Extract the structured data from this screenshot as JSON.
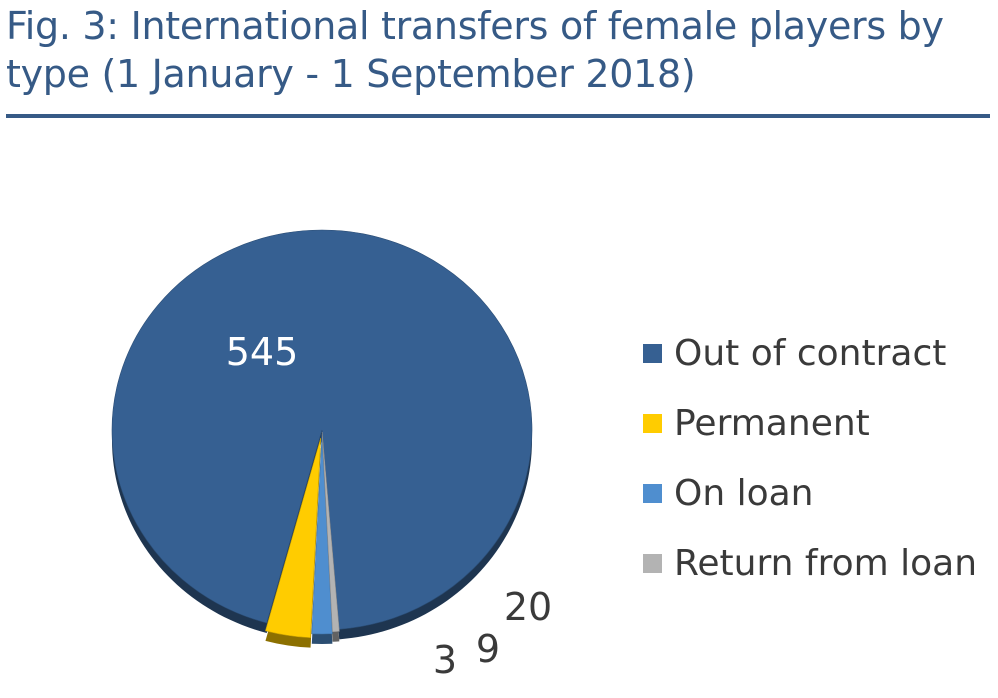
{
  "title": "Fig. 3: International transfers of female players by type (1 January - 1 September 2018)",
  "chart_data": {
    "type": "pie",
    "title": "Fig. 3: International transfers of female players by type (1 January - 1 September 2018)",
    "categories": [
      "Out of contract",
      "Permanent",
      "On loan",
      "Return from loan"
    ],
    "values": [
      545,
      20,
      9,
      3
    ],
    "data_labels": [
      "545",
      "20",
      "9",
      "3"
    ],
    "colors": [
      "#366092",
      "#ffcc00",
      "#4f8ecf",
      "#b3b3b3"
    ],
    "legend_position": "right",
    "style": "3d-tilted"
  }
}
